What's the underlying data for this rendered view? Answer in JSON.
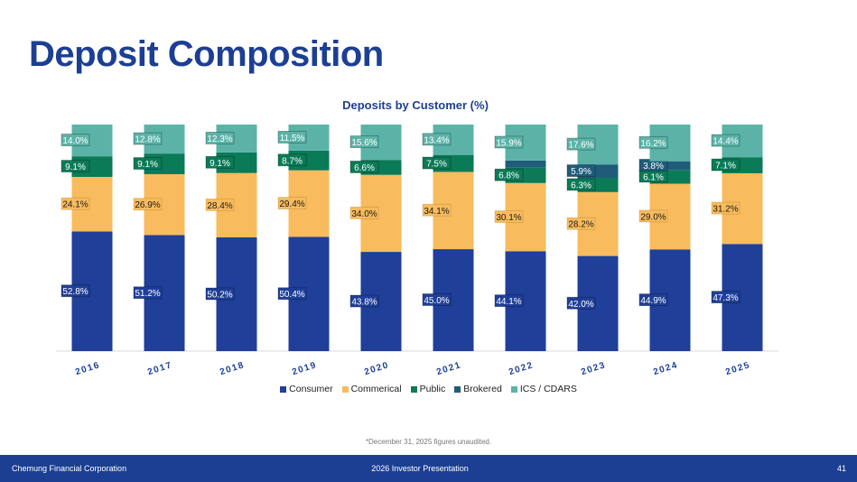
{
  "page": {
    "title": "Deposit Composition",
    "footnote": "*December 31, 2025 figures unaudited."
  },
  "footer": {
    "left": "Chemung Financial Corporation",
    "center": "2026 Investor Presentation",
    "page_number": "41"
  },
  "colors": {
    "Consumer": "#1f3f98",
    "Commerical": "#f8bb5d",
    "Public": "#0b7a57",
    "Brokered": "#1f5c79",
    "ICS / CDARS": "#5bb3a8",
    "title": "#1c3f94",
    "footer_bg": "#1c3f94"
  },
  "chart_data": {
    "type": "bar",
    "stacked": true,
    "title": "Deposits by Customer (%)",
    "xlabel": "",
    "ylabel": "",
    "ylim": [
      0,
      100
    ],
    "legend_position": "bottom",
    "categories": [
      "2016",
      "2017",
      "2018",
      "2019",
      "2020",
      "2021",
      "2022",
      "2023",
      "2024",
      "2025"
    ],
    "series": [
      {
        "name": "Consumer",
        "values": [
          52.8,
          51.2,
          50.2,
          50.4,
          43.8,
          45.0,
          44.1,
          42.0,
          44.9,
          47.3
        ],
        "labels": [
          "52.8%",
          "51.2%",
          "50.2%",
          "50.4%",
          "43.8%",
          "45.0%",
          "44.1%",
          "42.0%",
          "44.9%",
          "47.3%"
        ]
      },
      {
        "name": "Commerical",
        "values": [
          24.1,
          26.9,
          28.4,
          29.4,
          34.0,
          34.1,
          30.1,
          28.2,
          29.0,
          31.2
        ],
        "labels": [
          "24.1%",
          "26.9%",
          "28.4%",
          "29.4%",
          "34.0%",
          "34.1%",
          "30.1%",
          "28.2%",
          "29.0%",
          "31.2%"
        ]
      },
      {
        "name": "Public",
        "values": [
          9.1,
          9.1,
          9.1,
          8.7,
          6.6,
          7.5,
          6.8,
          6.3,
          6.1,
          7.1
        ],
        "labels": [
          "9.1%",
          "9.1%",
          "9.1%",
          "8.7%",
          "6.6%",
          "7.5%",
          "6.8%",
          "6.3%",
          "6.1%",
          "7.1%"
        ]
      },
      {
        "name": "Brokered",
        "values": [
          0,
          0,
          0,
          0,
          0,
          0,
          3.1,
          5.9,
          3.8,
          0
        ],
        "labels": [
          "",
          "",
          "",
          "",
          "",
          "",
          "",
          "5.9%",
          "3.8%",
          ""
        ]
      },
      {
        "name": "ICS / CDARS",
        "values": [
          14.0,
          12.8,
          12.3,
          11.5,
          15.6,
          13.4,
          15.9,
          17.6,
          16.2,
          14.4
        ],
        "labels": [
          "14.0%",
          "12.8%",
          "12.3%",
          "11.5%",
          "15.6%",
          "13.4%",
          "15.9%",
          "17.6%",
          "16.2%",
          "14.4%"
        ]
      }
    ]
  }
}
